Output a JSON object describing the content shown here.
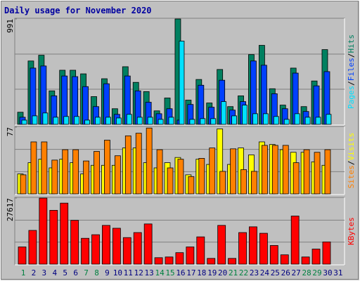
{
  "title": "Daily usage for November 2020",
  "legend_separator": "/",
  "chart_data": [
    {
      "type": "bar",
      "ylim": [
        0,
        991
      ],
      "yticks": [
        991
      ],
      "series": [
        {
          "name": "Hits",
          "color": "#008060",
          "values": [
            114,
            596,
            650,
            315,
            509,
            509,
            475,
            261,
            429,
            147,
            542,
            395,
            308,
            127,
            248,
            991,
            228,
            422,
            201,
            516,
            167,
            268,
            656,
            743,
            335,
            181,
            529,
            167,
            408,
            703,
            0
          ]
        },
        {
          "name": "Files",
          "color": "#0040ff",
          "values": [
            67,
            529,
            549,
            268,
            455,
            449,
            355,
            167,
            382,
            94,
            455,
            315,
            208,
            100,
            147,
            40,
            187,
            368,
            161,
            415,
            134,
            214,
            596,
            556,
            288,
            147,
            482,
            121,
            362,
            496,
            0
          ]
        },
        {
          "name": "Pages",
          "color": "#00e0ff",
          "values": [
            40,
            80,
            107,
            67,
            74,
            74,
            40,
            67,
            67,
            60,
            94,
            67,
            67,
            47,
            67,
            783,
            47,
            54,
            54,
            214,
            80,
            181,
            100,
            100,
            74,
            47,
            100,
            67,
            67,
            94,
            0
          ]
        }
      ]
    },
    {
      "type": "bar",
      "ylim": [
        0,
        77
      ],
      "yticks": [
        77
      ],
      "series": [
        {
          "name": "Visits",
          "color": "#ffff00",
          "values": [
            23,
            36,
            40,
            30,
            40,
            36,
            23,
            33,
            33,
            33,
            53,
            53,
            36,
            30,
            36,
            42,
            22,
            40,
            34,
            75,
            34,
            53,
            45,
            60,
            57,
            51,
            48,
            48,
            37,
            33,
            0
          ]
        },
        {
          "name": "Sites",
          "color": "#ff8000",
          "values": [
            22,
            60,
            60,
            39,
            51,
            51,
            38,
            49,
            62,
            44,
            67,
            70,
            76,
            51,
            30,
            40,
            20,
            41,
            53,
            26,
            52,
            28,
            26,
            56,
            56,
            56,
            36,
            51,
            48,
            51,
            0
          ]
        }
      ]
    },
    {
      "type": "bar",
      "ylim": [
        0,
        27617
      ],
      "yticks": [
        27617
      ],
      "series": [
        {
          "name": "KBytes",
          "color": "#ff0000",
          "values": [
            7204,
            14109,
            27617,
            22514,
            25516,
            18311,
            10807,
            12308,
            16210,
            15009,
            11107,
            13208,
            16810,
            2702,
            3002,
            4803,
            7204,
            11407,
            2401,
            16210,
            2401,
            13208,
            15610,
            12908,
            7805,
            3902,
            20112,
            3002,
            6304,
            9306,
            0
          ]
        }
      ],
      "categories": [
        "1",
        "2",
        "3",
        "4",
        "5",
        "6",
        "7",
        "8",
        "9",
        "10",
        "11",
        "12",
        "13",
        "14",
        "15",
        "16",
        "17",
        "18",
        "19",
        "20",
        "21",
        "22",
        "23",
        "24",
        "25",
        "26",
        "27",
        "28",
        "29",
        "30",
        "31"
      ],
      "category_colors": [
        "#008040",
        "#000080",
        "#000080",
        "#000080",
        "#000080",
        "#000080",
        "#008040",
        "#008040",
        "#000080",
        "#000080",
        "#000080",
        "#000080",
        "#000080",
        "#008040",
        "#008040",
        "#000080",
        "#000080",
        "#000080",
        "#000080",
        "#000080",
        "#008040",
        "#008040",
        "#000080",
        "#000080",
        "#000080",
        "#000080",
        "#000080",
        "#008040",
        "#008040",
        "#000080",
        "#000080"
      ]
    }
  ]
}
